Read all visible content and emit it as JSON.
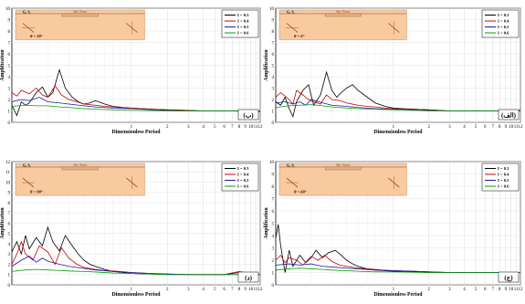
{
  "chart_data": [
    {
      "id": "a",
      "type": "line",
      "panel_label": "(الف)",
      "angle_label": "θ = 0°",
      "inset": {
        "left_label": "G. S.",
        "center_label": "Ref. Point",
        "center_sub": "SR7 0.1"
      },
      "xlabel": "Dimensionless Period",
      "ylabel": "Amplification",
      "xscale": "log",
      "xlim": [
        0.1,
        12
      ],
      "ylim": [
        0,
        10
      ],
      "yticks": [
        0,
        1,
        2,
        3,
        4,
        5,
        6,
        7,
        8,
        9,
        10
      ],
      "xticks": [
        1,
        2,
        3,
        4,
        5,
        6,
        7,
        8,
        9,
        10,
        11,
        12
      ],
      "xtick_labels": [
        "1",
        "2",
        "3",
        "4",
        "5",
        "6",
        "7",
        "8",
        "9",
        "10",
        "11",
        "12"
      ],
      "grid": true,
      "legend_position": "top-right",
      "colors": {
        "black": "#000000",
        "red": "#cc0000",
        "blue": "#1a1aa6",
        "green": "#00a000"
      },
      "series": [
        {
          "name": "I = 0.3",
          "color": "#000000",
          "x": [
            0.1,
            0.11,
            0.12,
            0.13,
            0.14,
            0.15,
            0.17,
            0.19,
            0.21,
            0.24,
            0.27,
            0.3,
            0.33,
            0.36,
            0.4,
            0.45,
            0.5,
            0.6,
            0.7,
            0.85,
            1,
            1.2,
            1.5,
            2,
            3,
            4,
            6,
            8,
            10,
            12
          ],
          "y": [
            1.8,
            1.5,
            2.2,
            1.2,
            0.5,
            1.8,
            2.8,
            3.3,
            1.5,
            2.4,
            4.4,
            2.8,
            2.2,
            2.6,
            3.0,
            3.3,
            2.8,
            2.2,
            1.7,
            1.4,
            1.25,
            1.2,
            1.15,
            1.1,
            1.0,
            1.0,
            1.0,
            1.0,
            1.0,
            1.05
          ]
        },
        {
          "name": "I = 0.4",
          "color": "#cc0000",
          "x": [
            0.1,
            0.11,
            0.12,
            0.13,
            0.14,
            0.15,
            0.17,
            0.19,
            0.21,
            0.24,
            0.27,
            0.3,
            0.35,
            0.4,
            0.5,
            0.6,
            0.7,
            0.85,
            1,
            1.5,
            2,
            3,
            4,
            6,
            8,
            10,
            12
          ],
          "y": [
            2.2,
            2.6,
            2.3,
            2.0,
            1.6,
            2.8,
            2.4,
            2.0,
            1.8,
            1.6,
            2.4,
            2.0,
            1.9,
            1.7,
            1.5,
            1.4,
            1.35,
            1.25,
            1.2,
            1.15,
            1.1,
            1.0,
            1.0,
            1.0,
            1.0,
            1.0,
            1.0
          ]
        },
        {
          "name": "I = 0.5",
          "color": "#1a1aa6",
          "x": [
            0.1,
            0.12,
            0.14,
            0.16,
            0.18,
            0.2,
            0.25,
            0.3,
            0.4,
            0.5,
            0.7,
            1,
            1.5,
            2,
            3,
            4,
            6,
            8,
            10,
            12
          ],
          "y": [
            1.7,
            1.8,
            1.6,
            1.8,
            1.5,
            2.0,
            1.7,
            1.5,
            1.4,
            1.3,
            1.2,
            1.15,
            1.1,
            1.05,
            1.0,
            1.0,
            1.0,
            1.0,
            1.0,
            1.0
          ]
        },
        {
          "name": "I = 0.6",
          "color": "#00a000",
          "x": [
            0.1,
            0.13,
            0.16,
            0.2,
            0.25,
            0.3,
            0.4,
            0.5,
            0.7,
            1,
            1.5,
            2,
            3,
            4,
            6,
            8,
            10,
            12
          ],
          "y": [
            1.3,
            1.45,
            1.5,
            1.55,
            1.45,
            1.35,
            1.25,
            1.2,
            1.15,
            1.1,
            1.05,
            1.0,
            1.0,
            1.0,
            1.0,
            1.0,
            1.0,
            1.0
          ]
        }
      ]
    },
    {
      "id": "b",
      "type": "line",
      "panel_label": "(ب)",
      "angle_label": "θ = 30°",
      "inset": {
        "left_label": "G. S.",
        "center_label": "Ref. Point",
        "center_sub": "SR7 0.1"
      },
      "xlabel": "Dimensionless Period",
      "ylabel": "Amplification",
      "xscale": "log",
      "xlim": [
        0.1,
        12
      ],
      "ylim": [
        0,
        10
      ],
      "yticks": [
        0,
        1,
        2,
        3,
        4,
        5,
        6,
        7,
        8,
        9,
        10
      ],
      "xticks": [
        1,
        2,
        3,
        4,
        5,
        6,
        7,
        8,
        9,
        10,
        11,
        12
      ],
      "xtick_labels": [
        "1",
        "2",
        "3",
        "4",
        "5",
        "6",
        "7",
        "8",
        "9",
        "10",
        "11",
        "12"
      ],
      "grid": true,
      "legend_position": "top-right",
      "colors": {
        "black": "#000000",
        "red": "#cc0000",
        "blue": "#1a1aa6",
        "green": "#00a000"
      },
      "series": [
        {
          "name": "I = 0.3",
          "color": "#000000",
          "x": [
            0.1,
            0.11,
            0.12,
            0.13,
            0.14,
            0.16,
            0.18,
            0.2,
            0.22,
            0.25,
            0.28,
            0.32,
            0.36,
            0.4,
            0.45,
            0.5,
            0.6,
            0.7,
            0.85,
            1,
            1.5,
            2,
            3,
            4,
            6,
            8,
            10,
            12
          ],
          "y": [
            1.5,
            0.6,
            1.8,
            1.5,
            1.7,
            2.6,
            3.1,
            2.2,
            2.6,
            4.6,
            3.0,
            2.2,
            1.8,
            1.6,
            1.7,
            1.9,
            1.6,
            1.4,
            1.3,
            1.25,
            1.15,
            1.1,
            1.05,
            1.0,
            1.0,
            0.98,
            0.95,
            0.95
          ]
        },
        {
          "name": "I = 0.4",
          "color": "#cc0000",
          "x": [
            0.1,
            0.11,
            0.12,
            0.14,
            0.16,
            0.18,
            0.2,
            0.23,
            0.26,
            0.3,
            0.35,
            0.4,
            0.5,
            0.6,
            0.8,
            1,
            1.5,
            2,
            3,
            4,
            6,
            8,
            10,
            12
          ],
          "y": [
            2.6,
            2.3,
            2.8,
            2.5,
            3.0,
            2.4,
            2.2,
            3.2,
            2.4,
            2.0,
            1.8,
            1.6,
            1.5,
            1.4,
            1.3,
            1.25,
            1.15,
            1.1,
            1.05,
            1.0,
            1.0,
            1.0,
            1.0,
            1.0
          ]
        },
        {
          "name": "I = 0.5",
          "color": "#1a1aa6",
          "x": [
            0.1,
            0.12,
            0.14,
            0.17,
            0.2,
            0.25,
            0.3,
            0.4,
            0.5,
            0.7,
            1,
            1.5,
            2,
            3,
            4,
            6,
            8,
            10,
            12
          ],
          "y": [
            1.8,
            2.0,
            1.9,
            2.2,
            1.8,
            1.7,
            1.6,
            1.45,
            1.35,
            1.25,
            1.2,
            1.1,
            1.05,
            1.0,
            1.0,
            1.0,
            1.0,
            1.0,
            1.0
          ]
        },
        {
          "name": "I = 0.6",
          "color": "#00a000",
          "x": [
            0.1,
            0.13,
            0.16,
            0.2,
            0.25,
            0.3,
            0.4,
            0.5,
            0.7,
            1,
            1.5,
            2,
            3,
            4,
            6,
            8,
            10,
            12
          ],
          "y": [
            1.4,
            1.5,
            1.45,
            1.45,
            1.35,
            1.3,
            1.2,
            1.15,
            1.1,
            1.05,
            1.02,
            1.0,
            1.0,
            1.0,
            1.0,
            1.0,
            1.0,
            1.0
          ]
        }
      ]
    },
    {
      "id": "c",
      "type": "line",
      "panel_label": "(ج)",
      "angle_label": "θ = 60°",
      "inset": {
        "left_label": "G. S.",
        "center_label": "Ref. Point",
        "center_sub": "SR7 0.1"
      },
      "xlabel": "Dimensionless Period",
      "ylabel": "Amplification",
      "xscale": "log",
      "xlim": [
        0.1,
        12
      ],
      "ylim": [
        0,
        10
      ],
      "yticks": [
        0,
        1,
        2,
        3,
        4,
        5,
        6,
        7,
        8,
        9,
        10
      ],
      "xticks": [
        1,
        2,
        3,
        4,
        5,
        6,
        7,
        8,
        9,
        10,
        11,
        12
      ],
      "xtick_labels": [
        "1",
        "2",
        "3",
        "4",
        "5",
        "6",
        "7",
        "8",
        "9",
        "10",
        "11",
        "12"
      ],
      "grid": true,
      "legend_position": "top-right",
      "colors": {
        "black": "#000000",
        "red": "#cc0000",
        "blue": "#1a1aa6",
        "green": "#00a000"
      },
      "series": [
        {
          "name": "I = 0.3",
          "color": "#000000",
          "x": [
            0.1,
            0.105,
            0.11,
            0.12,
            0.13,
            0.14,
            0.16,
            0.18,
            0.2,
            0.22,
            0.25,
            0.28,
            0.32,
            0.36,
            0.4,
            0.45,
            0.5,
            0.6,
            0.7,
            0.85,
            1,
            1.5,
            2,
            3,
            4,
            6,
            8,
            10,
            12
          ],
          "y": [
            3.8,
            4.9,
            3.2,
            1.0,
            2.8,
            1.5,
            2.4,
            1.8,
            2.2,
            2.8,
            2.2,
            2.6,
            2.8,
            2.4,
            2.0,
            1.7,
            1.5,
            1.3,
            1.2,
            1.15,
            1.1,
            1.05,
            1.0,
            1.0,
            1.0,
            1.0,
            1.0,
            1.0,
            1.0
          ]
        },
        {
          "name": "I = 0.4",
          "color": "#cc0000",
          "x": [
            0.1,
            0.11,
            0.12,
            0.13,
            0.15,
            0.17,
            0.2,
            0.23,
            0.26,
            0.3,
            0.35,
            0.4,
            0.5,
            0.6,
            0.8,
            1,
            1.5,
            2,
            3,
            4,
            6,
            8,
            10,
            12
          ],
          "y": [
            2.0,
            2.4,
            1.8,
            2.2,
            2.0,
            1.6,
            2.3,
            2.0,
            2.4,
            1.9,
            1.6,
            1.5,
            1.35,
            1.3,
            1.2,
            1.15,
            1.1,
            1.05,
            1.0,
            1.0,
            1.0,
            1.0,
            1.0,
            1.0
          ]
        },
        {
          "name": "I = 0.5",
          "color": "#1a1aa6",
          "x": [
            0.1,
            0.13,
            0.16,
            0.2,
            0.25,
            0.3,
            0.4,
            0.5,
            0.7,
            1,
            1.5,
            2,
            3,
            4,
            6,
            8,
            10,
            12
          ],
          "y": [
            1.6,
            1.7,
            1.6,
            1.7,
            1.5,
            1.45,
            1.35,
            1.3,
            1.2,
            1.15,
            1.1,
            1.05,
            1.0,
            1.0,
            1.0,
            1.0,
            1.0,
            1.0
          ]
        },
        {
          "name": "I = 0.6",
          "color": "#00a000",
          "x": [
            0.1,
            0.13,
            0.16,
            0.2,
            0.25,
            0.3,
            0.4,
            0.5,
            0.7,
            1,
            1.5,
            2,
            3,
            4,
            6,
            8,
            10,
            12
          ],
          "y": [
            1.2,
            1.3,
            1.35,
            1.3,
            1.25,
            1.2,
            1.15,
            1.1,
            1.05,
            1.05,
            1.02,
            1.0,
            1.0,
            1.0,
            1.0,
            1.0,
            1.0,
            1.0
          ]
        }
      ]
    },
    {
      "id": "d",
      "type": "line",
      "panel_label": "(د)",
      "angle_label": "θ = 90°",
      "inset": {
        "left_label": "G. S.",
        "center_label": "Ref. Point",
        "center_sub": "SR7 0.1"
      },
      "xlabel": "Dimensionless Period",
      "ylabel": "Amplification",
      "xscale": "log",
      "xlim": [
        0.1,
        12
      ],
      "ylim": [
        0,
        12
      ],
      "yticks": [
        0,
        1,
        2,
        3,
        4,
        5,
        6,
        7,
        8,
        9,
        10,
        11,
        12
      ],
      "xticks": [
        1,
        2,
        3,
        4,
        5,
        6,
        7,
        8,
        9,
        10,
        11,
        12
      ],
      "xtick_labels": [
        "1",
        "2",
        "3",
        "4",
        "5",
        "6",
        "7",
        "8",
        "9",
        "10",
        "11",
        "12"
      ],
      "grid": true,
      "legend_position": "top-right",
      "colors": {
        "black": "#000000",
        "red": "#cc0000",
        "blue": "#1a1aa6",
        "green": "#00a000"
      },
      "series": [
        {
          "name": "I = 0.3",
          "color": "#000000",
          "x": [
            0.1,
            0.11,
            0.12,
            0.13,
            0.14,
            0.16,
            0.18,
            0.2,
            0.22,
            0.25,
            0.28,
            0.32,
            0.36,
            0.4,
            0.45,
            0.5,
            0.6,
            0.7,
            0.85,
            1,
            1.5,
            2,
            3,
            4,
            6,
            8,
            10,
            12
          ],
          "y": [
            3.2,
            4.2,
            3.0,
            4.8,
            3.5,
            4.6,
            3.8,
            5.6,
            4.2,
            3.3,
            4.8,
            3.8,
            3.0,
            2.4,
            2.0,
            1.8,
            1.5,
            1.3,
            1.2,
            1.1,
            1.05,
            1.0,
            1.0,
            1.0,
            1.0,
            1.2,
            1.0,
            1.0
          ]
        },
        {
          "name": "I = 0.4",
          "color": "#cc0000",
          "x": [
            0.1,
            0.11,
            0.12,
            0.13,
            0.15,
            0.17,
            0.2,
            0.23,
            0.26,
            0.3,
            0.35,
            0.4,
            0.5,
            0.6,
            0.8,
            1,
            1.5,
            2,
            3,
            4,
            6,
            8,
            10,
            12
          ],
          "y": [
            2.0,
            3.0,
            4.2,
            3.0,
            2.4,
            3.8,
            3.2,
            2.0,
            3.6,
            2.6,
            2.0,
            1.7,
            1.5,
            1.4,
            1.3,
            1.2,
            1.1,
            1.05,
            1.0,
            1.0,
            1.0,
            1.3,
            1.1,
            1.0
          ]
        },
        {
          "name": "I = 0.5",
          "color": "#1a1aa6",
          "x": [
            0.1,
            0.12,
            0.14,
            0.16,
            0.18,
            0.2,
            0.25,
            0.3,
            0.4,
            0.5,
            0.7,
            1,
            1.5,
            2,
            3,
            4,
            6,
            8,
            10,
            12
          ],
          "y": [
            1.8,
            2.4,
            2.8,
            2.2,
            2.6,
            2.3,
            2.0,
            1.8,
            1.6,
            1.45,
            1.3,
            1.2,
            1.1,
            1.05,
            1.0,
            1.0,
            1.0,
            1.0,
            1.0,
            1.0
          ]
        },
        {
          "name": "I = 0.6",
          "color": "#00a000",
          "x": [
            0.1,
            0.13,
            0.16,
            0.2,
            0.25,
            0.3,
            0.4,
            0.5,
            0.7,
            1,
            1.5,
            2,
            3,
            4,
            6,
            8,
            10,
            12
          ],
          "y": [
            1.3,
            1.45,
            1.5,
            1.45,
            1.4,
            1.35,
            1.3,
            1.25,
            1.15,
            1.1,
            1.05,
            1.0,
            1.0,
            1.0,
            1.0,
            1.0,
            1.0,
            1.0
          ]
        }
      ]
    }
  ]
}
